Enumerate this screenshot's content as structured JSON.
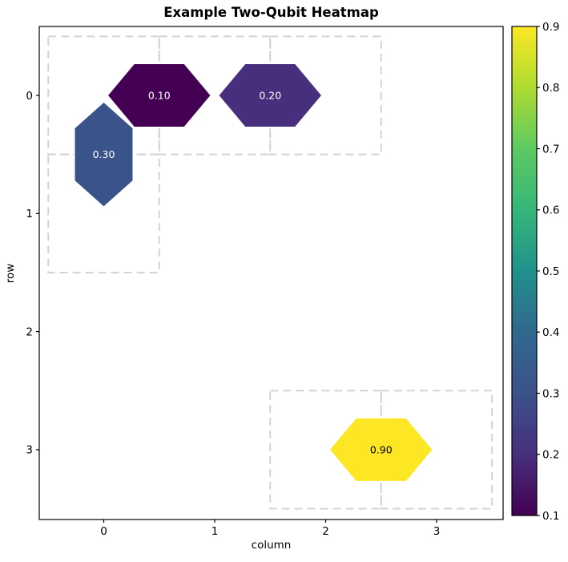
{
  "chart_data": {
    "type": "heatmap",
    "title": "Example Two-Qubit Heatmap",
    "xlabel": "column",
    "ylabel": "row",
    "x_ticks": [
      0,
      1,
      2,
      3
    ],
    "y_ticks": [
      0,
      1,
      2,
      3
    ],
    "x_range": [
      -0.6,
      3.6
    ],
    "y_range": [
      3.6,
      -0.6
    ],
    "y_axis_inverted": true,
    "grid": false,
    "legend": "none",
    "marker_shape": "hexagon",
    "couplers": [
      {
        "label": "0.30",
        "value": 0.3,
        "col": 0.0,
        "row": 0.5,
        "orientation": "vertical",
        "qubits": [
          [
            0,
            0
          ],
          [
            0,
            1
          ]
        ],
        "color": "#3b538b",
        "text_color": "#ffffff"
      },
      {
        "label": "0.10",
        "value": 0.1,
        "col": 0.5,
        "row": 0.0,
        "orientation": "horizontal",
        "qubits": [
          [
            0,
            0
          ],
          [
            1,
            0
          ]
        ],
        "color": "#440154",
        "text_color": "#ffffff"
      },
      {
        "label": "0.20",
        "value": 0.2,
        "col": 1.5,
        "row": 0.0,
        "orientation": "horizontal",
        "qubits": [
          [
            1,
            0
          ],
          [
            2,
            0
          ]
        ],
        "color": "#472f7d",
        "text_color": "#ffffff"
      },
      {
        "label": "0.90",
        "value": 0.9,
        "col": 2.5,
        "row": 3.0,
        "orientation": "horizontal",
        "qubits": [
          [
            2,
            3
          ],
          [
            3,
            3
          ]
        ],
        "color": "#fde725",
        "text_color": "#000000"
      }
    ],
    "dashed_cell_outlines": [
      [
        0,
        0
      ],
      [
        1,
        0
      ],
      [
        2,
        0
      ],
      [
        0,
        1
      ],
      [
        2,
        3
      ],
      [
        3,
        3
      ]
    ],
    "colorbar": {
      "colormap": "viridis",
      "vmin": 0.1,
      "vmax": 0.9,
      "tick_values": [
        0.1,
        0.2,
        0.3,
        0.4,
        0.5,
        0.6,
        0.7,
        0.8,
        0.9
      ],
      "tick_labels": [
        "0.1",
        "0.2",
        "0.3",
        "0.4",
        "0.5",
        "0.6",
        "0.7",
        "0.8",
        "0.9"
      ],
      "stops": [
        {
          "value": 0.1,
          "color": "#440154"
        },
        {
          "value": 0.2,
          "color": "#472f7d"
        },
        {
          "value": 0.3,
          "color": "#3b528b"
        },
        {
          "value": 0.4,
          "color": "#31688e"
        },
        {
          "value": 0.5,
          "color": "#21918c"
        },
        {
          "value": 0.6,
          "color": "#35b779"
        },
        {
          "value": 0.7,
          "color": "#5ec962"
        },
        {
          "value": 0.8,
          "color": "#addc30"
        },
        {
          "value": 0.9,
          "color": "#fde725"
        }
      ]
    },
    "styles": {
      "background": "#ffffff",
      "axis_color": "#000000",
      "dash_color": "#d3d3d3",
      "hexagon_edge_color": "#ffffff"
    }
  }
}
